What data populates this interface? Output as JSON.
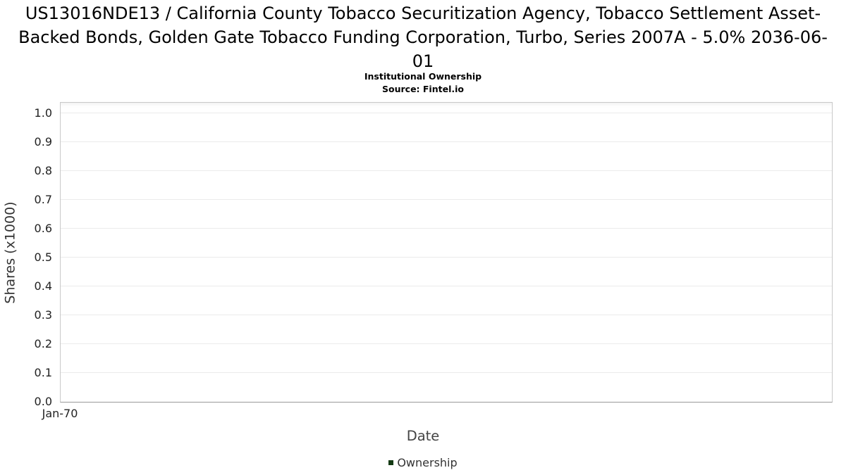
{
  "chart_data": {
    "type": "line",
    "title": "US13016NDE13 / California County Tobacco Securitization Agency, Tobacco Settlement Asset-Backed Bonds, Golden Gate Tobacco Funding Corporation, Turbo, Series 2007A - 5.0% 2036-06-01",
    "subtitle": "Institutional Ownership",
    "source": "Source: Fintel.io",
    "xlabel": "Date",
    "ylabel": "Shares (x1000)",
    "x_ticks": [
      "Jan-70"
    ],
    "y_ticks": [
      0.0,
      0.1,
      0.2,
      0.3,
      0.4,
      0.5,
      0.6,
      0.7,
      0.8,
      0.9,
      1.0
    ],
    "ylim": [
      0,
      1.037
    ],
    "grid": true,
    "legend_position": "bottom",
    "series": [
      {
        "name": "Ownership",
        "color": "#143a14",
        "x": [],
        "values": []
      }
    ],
    "colors": {
      "gridline": "#ebebeb",
      "plot_border": "#c9c9c9",
      "tick_text": "#222222",
      "axis_label_text": "#333333"
    }
  }
}
